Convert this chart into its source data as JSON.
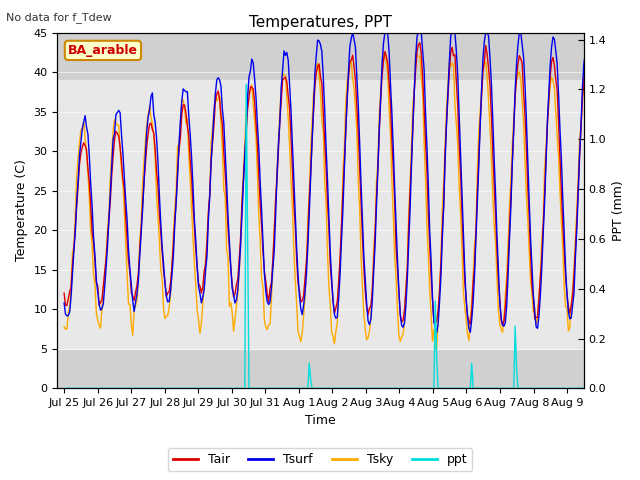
{
  "title": "Temperatures, PPT",
  "subtitle": "No data for f_Tdew",
  "box_label": "BA_arable",
  "xlabel": "Time",
  "ylabel_left": "Temperature (C)",
  "ylabel_right": "PPT (mm)",
  "xlim_days": [
    -0.2,
    15.5
  ],
  "ylim_left": [
    0,
    45
  ],
  "ylim_right": [
    0.0,
    1.4286
  ],
  "xtick_labels": [
    "Jul 25",
    "Jul 26",
    "Jul 27",
    "Jul 28",
    "Jul 29",
    "Jul 30",
    "Jul 31",
    "Aug 1",
    "Aug 2",
    "Aug 3",
    "Aug 4",
    "Aug 5",
    "Aug 6",
    "Aug 7",
    "Aug 8",
    "Aug 9"
  ],
  "xtick_positions": [
    0,
    1,
    2,
    3,
    4,
    5,
    6,
    7,
    8,
    9,
    10,
    11,
    12,
    13,
    14,
    15
  ],
  "gray_inner_band": [
    5,
    39
  ],
  "color_tair": "#dd0000",
  "color_tsurf": "#0000ee",
  "color_tsky": "#ffaa00",
  "color_ppt": "#00dddd",
  "legend_entries": [
    "Tair",
    "Tsurf",
    "Tsky",
    "ppt"
  ],
  "background_color": "#ffffff",
  "plot_bg_outer": "#d0d0d0",
  "plot_bg_inner": "#e8e8e8"
}
